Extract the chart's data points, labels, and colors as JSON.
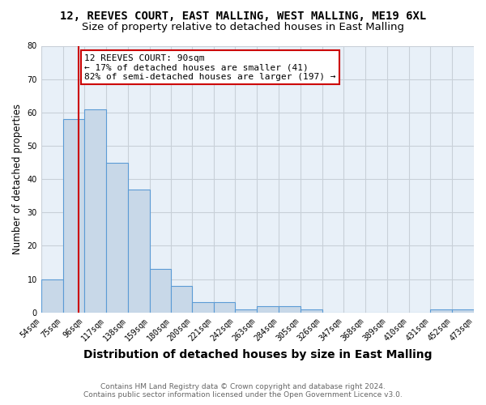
{
  "title_line1": "12, REEVES COURT, EAST MALLING, WEST MALLING, ME19 6XL",
  "title_line2": "Size of property relative to detached houses in East Malling",
  "xlabel": "Distribution of detached houses by size in East Malling",
  "ylabel": "Number of detached properties",
  "bin_edges": [
    54,
    75,
    96,
    117,
    138,
    159,
    180,
    200,
    221,
    242,
    263,
    284,
    305,
    326,
    347,
    368,
    389,
    410,
    431,
    452,
    473
  ],
  "bar_heights": [
    10,
    58,
    61,
    45,
    37,
    13,
    8,
    3,
    3,
    1,
    2,
    2,
    1,
    0,
    0,
    0,
    0,
    0,
    1,
    1
  ],
  "bar_color": "#c8d8e8",
  "bar_edge_color": "#5b9bd5",
  "property_size": 90,
  "vline_color": "#cc0000",
  "annotation_line1": "12 REEVES COURT: 90sqm",
  "annotation_line2": "← 17% of detached houses are smaller (41)",
  "annotation_line3": "82% of semi-detached houses are larger (197) →",
  "annotation_box_color": "#ffffff",
  "annotation_box_edge_color": "#cc0000",
  "ylim": [
    0,
    80
  ],
  "yticks": [
    0,
    10,
    20,
    30,
    40,
    50,
    60,
    70,
    80
  ],
  "grid_color": "#c8d0d8",
  "bg_color": "#e8f0f8",
  "footer_line1": "Contains HM Land Registry data © Crown copyright and database right 2024.",
  "footer_line2": "Contains public sector information licensed under the Open Government Licence v3.0.",
  "title_fontsize": 10,
  "subtitle_fontsize": 9.5,
  "xlabel_fontsize": 10,
  "ylabel_fontsize": 8.5,
  "tick_fontsize": 7,
  "footer_fontsize": 6.5,
  "annotation_fontsize": 8
}
